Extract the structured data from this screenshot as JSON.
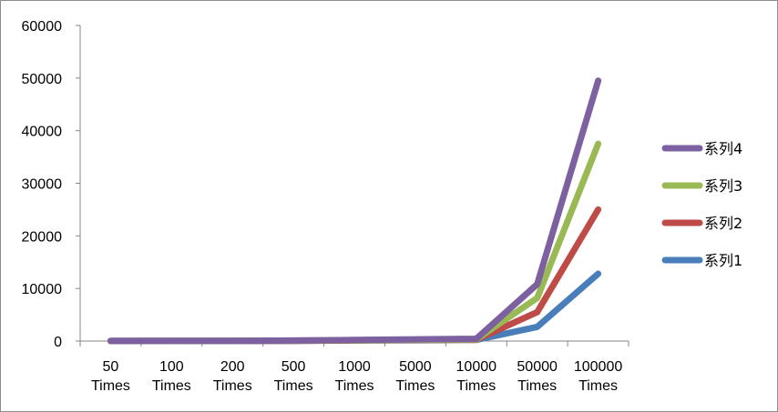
{
  "chart_data": {
    "type": "line",
    "title": "",
    "xlabel": "",
    "ylabel": "",
    "categories": [
      [
        "50",
        "Times"
      ],
      [
        "100",
        "Times"
      ],
      [
        "200",
        "Times"
      ],
      [
        "500",
        "Times"
      ],
      [
        "1000",
        "Times"
      ],
      [
        "5000",
        "Times"
      ],
      [
        "10000",
        "Times"
      ],
      [
        "50000",
        "Times"
      ],
      [
        "100000",
        "Times"
      ]
    ],
    "ylim": [
      0,
      60000
    ],
    "yticks": [
      "0",
      "10000",
      "20000",
      "30000",
      "40000",
      "50000",
      "60000"
    ],
    "grid": false,
    "legend": "right",
    "series": [
      {
        "name": "系列1",
        "color": "#4a7ebb",
        "values": [
          10,
          15,
          25,
          50,
          100,
          150,
          220,
          2700,
          12800
        ]
      },
      {
        "name": "系列2",
        "color": "#be4b48",
        "values": [
          10,
          20,
          30,
          60,
          120,
          190,
          250,
          5500,
          25000
        ]
      },
      {
        "name": "系列3",
        "color": "#98b954",
        "values": [
          10,
          20,
          40,
          80,
          150,
          240,
          330,
          8200,
          37500
        ]
      },
      {
        "name": "系列4",
        "color": "#7d60a0",
        "values": [
          20,
          30,
          50,
          100,
          200,
          320,
          440,
          10800,
          49500
        ]
      }
    ]
  }
}
